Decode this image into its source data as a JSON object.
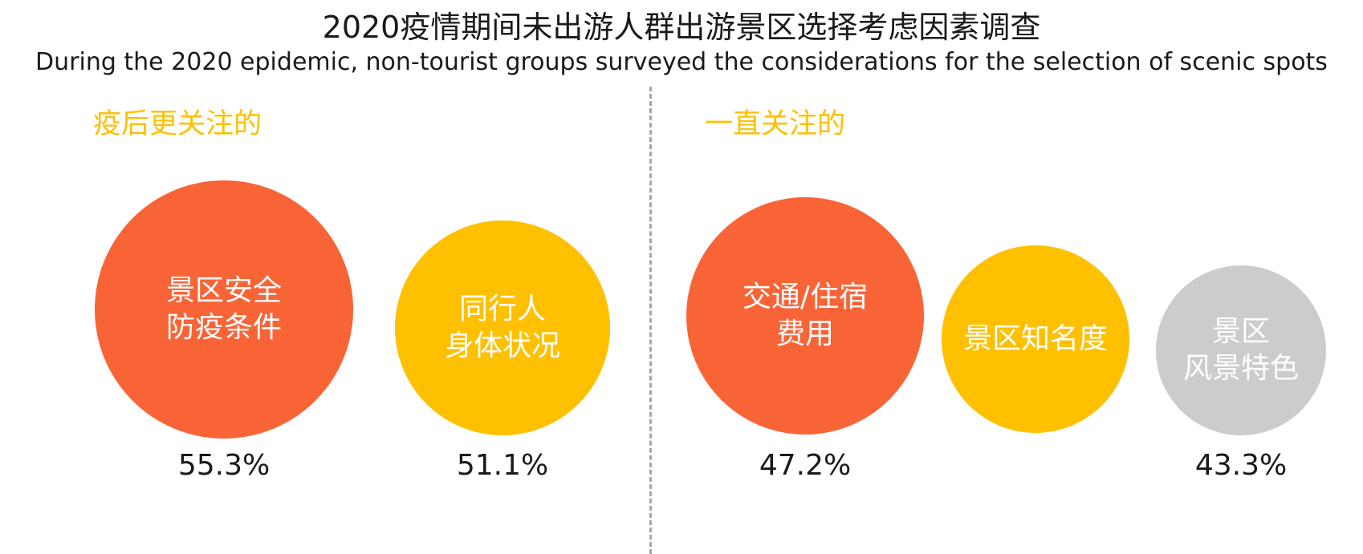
{
  "title_cn": "2020疫情期间未出游人群出游景区选择考虑因素调查",
  "title_en": "During the 2020 epidemic, non-tourist groups surveyed the considerations for the selection of scenic spots",
  "section_left": "疫后更关注的",
  "section_right": "一直关注的",
  "colors": {
    "orange": "#f96437",
    "yellow": "#ffc000",
    "gray": "#cccccc",
    "accent_text": "#ffc000"
  },
  "chart_data": {
    "type": "bubble",
    "title": "2020疫情期间未出游人群出游景区选择考虑因素调查",
    "subtitle": "During the 2020 epidemic, non-tourist groups surveyed the considerations for the selection of scenic spots",
    "unit": "%",
    "groups": [
      {
        "name": "疫后更关注的",
        "items": [
          {
            "label_lines": [
              "景区安全",
              "防疫条件"
            ],
            "value": 55.3,
            "value_label": "55.3%",
            "color": "orange"
          },
          {
            "label_lines": [
              "同行人",
              "身体状况"
            ],
            "value": 51.1,
            "value_label": "51.1%",
            "color": "yellow"
          }
        ]
      },
      {
        "name": "一直关注的",
        "items": [
          {
            "label_lines": [
              "交通/住宿",
              "费用"
            ],
            "value": 47.2,
            "value_label": "47.2%",
            "color": "orange"
          },
          {
            "label_lines": [
              "景区知名度"
            ],
            "value": null,
            "value_label": null,
            "color": "yellow"
          },
          {
            "label_lines": [
              "景区",
              "风景特色"
            ],
            "value": 43.3,
            "value_label": "43.3%",
            "color": "gray"
          }
        ]
      }
    ]
  }
}
